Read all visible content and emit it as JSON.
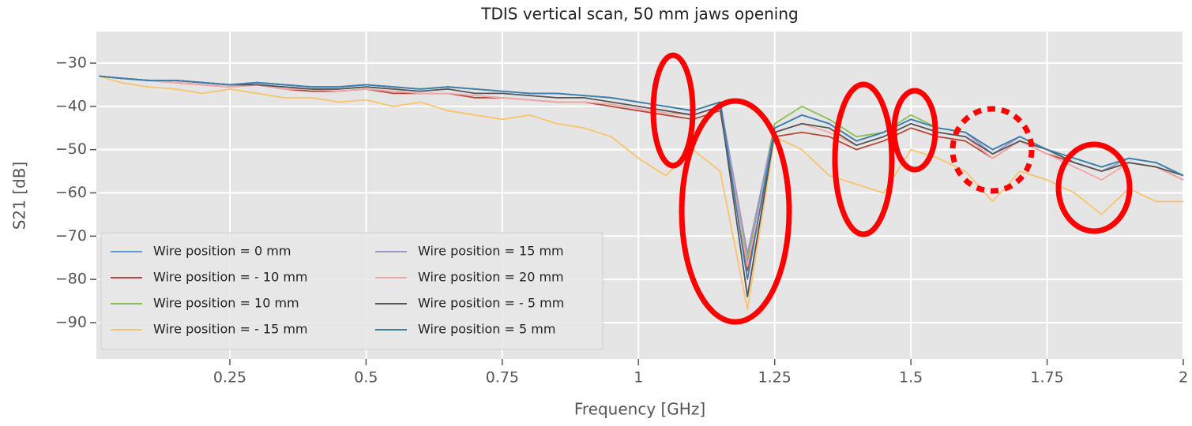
{
  "chart_data": {
    "type": "line",
    "title": "TDIS vertical scan, 50 mm jaws opening",
    "x_label": "Frequency [GHz]",
    "y_label": "S21 [dB]",
    "x": [
      0.01,
      0.05,
      0.1,
      0.15,
      0.2,
      0.25,
      0.3,
      0.35,
      0.4,
      0.45,
      0.5,
      0.55,
      0.6,
      0.65,
      0.7,
      0.75,
      0.8,
      0.85,
      0.9,
      0.95,
      1.0,
      1.05,
      1.1,
      1.15,
      1.2,
      1.25,
      1.3,
      1.35,
      1.4,
      1.45,
      1.5,
      1.55,
      1.6,
      1.65,
      1.7,
      1.75,
      1.8,
      1.85,
      1.9,
      1.95,
      2.0
    ],
    "series": [
      {
        "name": "Wire position = 0 mm",
        "color": "#5b9bd5",
        "values": [
          -33,
          -33.5,
          -34,
          -34,
          -34.5,
          -35,
          -34.5,
          -35,
          -35.5,
          -35.5,
          -35,
          -35.5,
          -36,
          -35.5,
          -36,
          -36.5,
          -37,
          -37,
          -37.5,
          -38,
          -39,
          -40,
          -41,
          -39,
          -76,
          -45,
          -42,
          -44,
          -48,
          -46,
          -43,
          -45,
          -46,
          -50,
          -47,
          -50,
          -52,
          -54,
          -52,
          -53,
          -56
        ]
      },
      {
        "name": "Wire position = - 10 mm",
        "color": "#b5473a",
        "values": [
          -33,
          -33.5,
          -34,
          -34.5,
          -35,
          -35.5,
          -35,
          -36,
          -36.5,
          -36.5,
          -36,
          -37,
          -37,
          -37,
          -38,
          -38,
          -38.5,
          -39,
          -39,
          -40,
          -41,
          -42,
          -43,
          -41,
          -78,
          -47,
          -46,
          -47,
          -50,
          -48,
          -45,
          -47,
          -48,
          -52,
          -48,
          -51,
          -53,
          -55,
          -53,
          -54,
          -57
        ]
      },
      {
        "name": "Wire position = 10 mm",
        "color": "#8cbf4e",
        "values": [
          -33,
          -33.5,
          -34,
          -34,
          -34.5,
          -35,
          -34.5,
          -35,
          -35.5,
          -35.5,
          -35,
          -35.5,
          -36,
          -35.5,
          -36,
          -36.5,
          -37,
          -37,
          -37.5,
          -38,
          -39,
          -40,
          -41,
          -39,
          -75,
          -44,
          -40,
          -43,
          -47,
          -46,
          -42,
          -45,
          -46,
          -50,
          -47,
          -50,
          -52,
          -54,
          -52,
          -53,
          -56
        ]
      },
      {
        "name": "Wire position = - 15 mm",
        "color": "#f9c46b",
        "values": [
          -33,
          -34.5,
          -35.5,
          -36,
          -37,
          -36,
          -37,
          -38,
          -38,
          -39,
          -38.5,
          -40,
          -39,
          -41,
          -42,
          -43,
          -42,
          -44,
          -45,
          -47,
          -52,
          -56,
          -50,
          -55,
          -87,
          -47,
          -50,
          -56,
          -58,
          -60,
          -50,
          -52,
          -55,
          -62,
          -55,
          -57,
          -60,
          -65,
          -59,
          -62,
          -62
        ]
      },
      {
        "name": "Wire position = 15 mm",
        "color": "#9d96cc",
        "values": [
          -33,
          -33.5,
          -34,
          -34,
          -34.5,
          -35,
          -34.5,
          -35,
          -35.5,
          -35.5,
          -35,
          -35.5,
          -36,
          -35.5,
          -36,
          -36.5,
          -37,
          -37,
          -37.5,
          -38,
          -39,
          -40,
          -41,
          -39,
          -74,
          -45,
          -42,
          -44,
          -48,
          -46,
          -43,
          -45,
          -46,
          -51,
          -47,
          -50,
          -53,
          -55,
          -52,
          -53,
          -56
        ]
      },
      {
        "name": "Wire position = 20 mm",
        "color": "#f2a7a7",
        "values": [
          -33,
          -33.5,
          -34,
          -34.5,
          -35,
          -35.5,
          -35,
          -36,
          -36,
          -36.5,
          -36,
          -36.5,
          -37,
          -37,
          -37.5,
          -38,
          -38.5,
          -39,
          -39,
          -39.5,
          -40.5,
          -41.5,
          -42,
          -40,
          -77,
          -46,
          -44,
          -46,
          -49,
          -47,
          -44,
          -46,
          -47,
          -52,
          -48,
          -51,
          -54,
          -57,
          -53,
          -54,
          -57
        ]
      },
      {
        "name": "Wire position = - 5 mm",
        "color": "#555555",
        "values": [
          -33,
          -33.5,
          -34,
          -34,
          -34.5,
          -35,
          -35,
          -35.5,
          -36,
          -36,
          -35.5,
          -36,
          -36.5,
          -36,
          -37,
          -37,
          -37.5,
          -38,
          -38,
          -39,
          -40,
          -41,
          -42,
          -40,
          -84,
          -46,
          -44,
          -45,
          -49,
          -47,
          -44,
          -46,
          -47,
          -51,
          -48,
          -50,
          -53,
          -55,
          -53,
          -54,
          -56
        ]
      },
      {
        "name": "Wire position = 5 mm",
        "color": "#3a7fb0",
        "values": [
          -33,
          -33.5,
          -34,
          -34,
          -34.5,
          -35,
          -34.5,
          -35,
          -35.5,
          -35.5,
          -35,
          -35.5,
          -36,
          -35.5,
          -36,
          -36.5,
          -37,
          -37,
          -37.5,
          -38,
          -39,
          -40,
          -41,
          -39,
          -80,
          -45,
          -42,
          -44,
          -48,
          -46,
          -43,
          -45,
          -46,
          -50,
          -47,
          -50,
          -52,
          -54,
          -52,
          -53,
          -56
        ]
      }
    ],
    "xlim": [
      0.005,
      2
    ],
    "ylim": [
      -98.4,
      -22.7
    ],
    "xticks": [
      0.25,
      0.5,
      0.75,
      1,
      1.25,
      1.5,
      1.75,
      2
    ],
    "yticks": [
      {
        "value": -30,
        "label": "−30"
      },
      {
        "value": -40,
        "label": "−40"
      },
      {
        "value": -50,
        "label": "−50"
      },
      {
        "value": -60,
        "label": "−60"
      },
      {
        "value": -70,
        "label": "−70"
      },
      {
        "value": -80,
        "label": "−80"
      },
      {
        "value": -90,
        "label": "−90"
      }
    ],
    "grid": true,
    "legend": "lower left"
  }
}
